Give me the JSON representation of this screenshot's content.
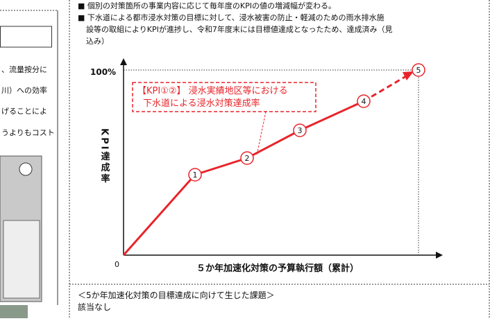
{
  "left_panel": {
    "lines": [
      "、流量按分に",
      "川）への効率",
      "げることによ",
      "うよりもコスト"
    ]
  },
  "bullets": [
    "■ 個別の対策箇所の事業内容に応じて毎年度のKPIの値の増減幅が変わる。",
    "■ 下水道による都市浸水対策の目標に対して、浸水被害の防止・軽減のための雨水排水施",
    "設等の取組によりKPIが進捗し、令和7年度末には目標値達成となったため、達成済み（見",
    "込み）"
  ],
  "figure": {
    "y_label": "KPI達成率",
    "y_top": "100%",
    "origin": "0",
    "x_label": "５か年加速化対策の予算執行額（累計）",
    "annotation": [
      "【KPI①②】 浸水実績地区等における",
      "下水道による浸水対策達成率"
    ],
    "points": [
      "1",
      "2",
      "3",
      "4",
      "5"
    ]
  },
  "issues": {
    "heading": "＜5か年加速化対策の目標達成に向けて生じた課題＞",
    "body": "該当なし"
  }
}
